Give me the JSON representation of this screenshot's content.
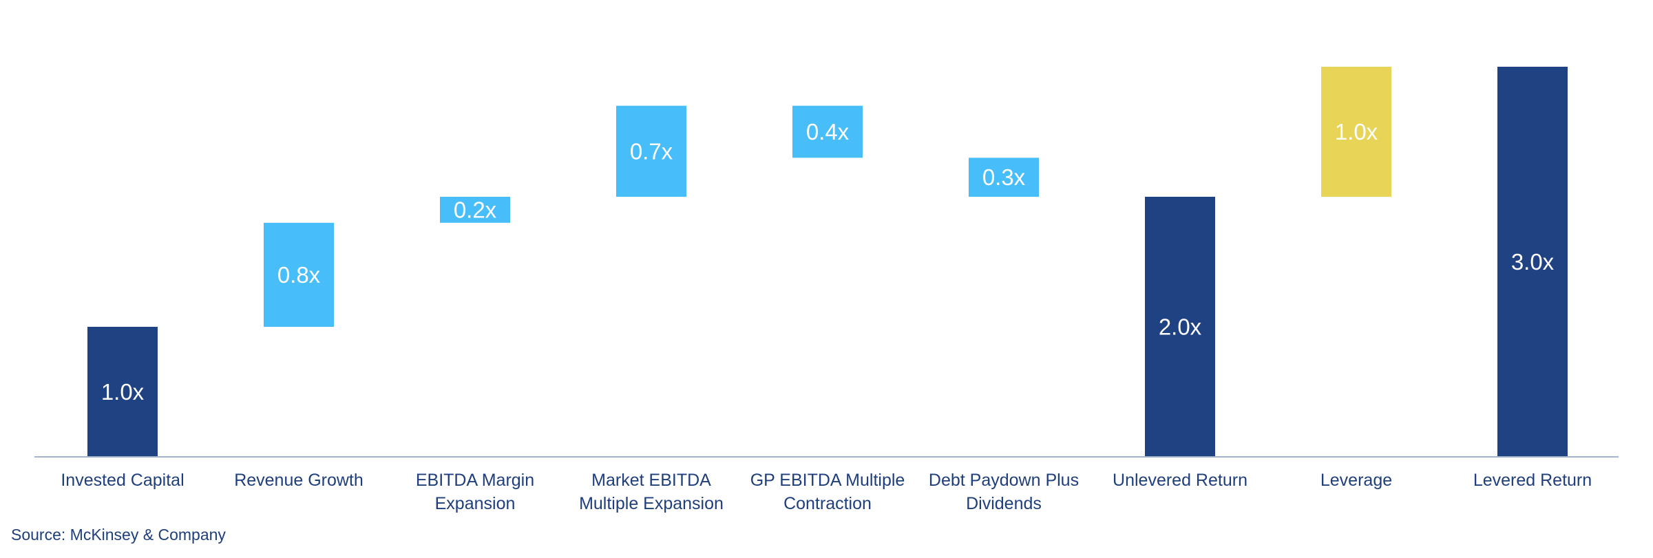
{
  "chart_data": {
    "type": "bar",
    "subtype": "waterfall",
    "categories": [
      "Invested Capital",
      "Revenue Growth",
      "EBITDA Margin Expansion",
      "Market EBITDA Multiple Expansion",
      "GP EBITDA Multiple Contraction",
      "Debt Paydown Plus Dividends",
      "Unlevered Return",
      "Leverage",
      "Levered Return"
    ],
    "category_lines": [
      [
        "Invested Capital"
      ],
      [
        "Revenue Growth"
      ],
      [
        "EBITDA Margin",
        "Expansion"
      ],
      [
        "Market EBITDA",
        "Multiple Expansion"
      ],
      [
        "GP EBITDA Multiple",
        "Contraction"
      ],
      [
        "Debt Paydown Plus",
        "Dividends"
      ],
      [
        "Unlevered Return"
      ],
      [
        "Leverage"
      ],
      [
        "Levered Return"
      ]
    ],
    "bars": [
      {
        "base": 0.0,
        "top": 1.0,
        "label": "1.0x",
        "kind": "total"
      },
      {
        "base": 1.0,
        "top": 1.8,
        "label": "0.8x",
        "kind": "increase"
      },
      {
        "base": 1.8,
        "top": 2.0,
        "label": "0.2x",
        "kind": "increase"
      },
      {
        "base": 2.0,
        "top": 2.7,
        "label": "0.7x",
        "kind": "increase"
      },
      {
        "base": 2.3,
        "top": 2.7,
        "label": "0.4x",
        "kind": "increase"
      },
      {
        "base": 2.0,
        "top": 2.3,
        "label": "0.3x",
        "kind": "increase"
      },
      {
        "base": 0.0,
        "top": 2.0,
        "label": "2.0x",
        "kind": "total"
      },
      {
        "base": 2.0,
        "top": 3.0,
        "label": "1.0x",
        "kind": "leverage"
      },
      {
        "base": 0.0,
        "top": 3.0,
        "label": "3.0x",
        "kind": "total"
      }
    ],
    "ylim": [
      0,
      3.0
    ],
    "colors": {
      "total": "#1f4282",
      "increase": "#47befa",
      "leverage": "#e8d456",
      "axis": "#a3b4cc",
      "label_text": "#ffffff",
      "category_text": "#1f3e7c"
    },
    "grid": false,
    "legend": "none"
  },
  "source": "Source: McKinsey & Company"
}
